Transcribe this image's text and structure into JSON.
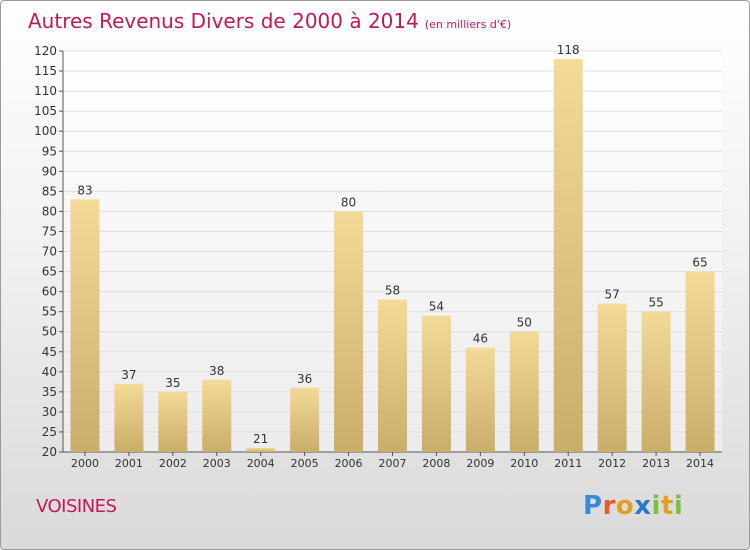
{
  "title": "Autres Revenus Divers de 2000 à 2014",
  "title_unit": "(en milliers d'€)",
  "location": "VOISINES",
  "brand": "Proxiti",
  "colors": {
    "title": "#c2185b",
    "bar_light": "#f3da97",
    "bar_dark": "#c9ae6a",
    "grid": "#e0e0e0"
  },
  "chart_data": {
    "type": "bar",
    "categories": [
      "2000",
      "2001",
      "2002",
      "2003",
      "2004",
      "2005",
      "2006",
      "2007",
      "2008",
      "2009",
      "2010",
      "2011",
      "2012",
      "2013",
      "2014"
    ],
    "values": [
      83,
      37,
      35,
      38,
      21,
      36,
      80,
      58,
      54,
      46,
      50,
      118,
      57,
      55,
      65
    ],
    "ylim": [
      20,
      120
    ],
    "yticks": [
      20,
      25,
      30,
      35,
      40,
      45,
      50,
      55,
      60,
      65,
      70,
      75,
      80,
      85,
      90,
      95,
      100,
      105,
      110,
      115,
      120
    ],
    "grid": true,
    "xlabel": "",
    "ylabel": ""
  }
}
